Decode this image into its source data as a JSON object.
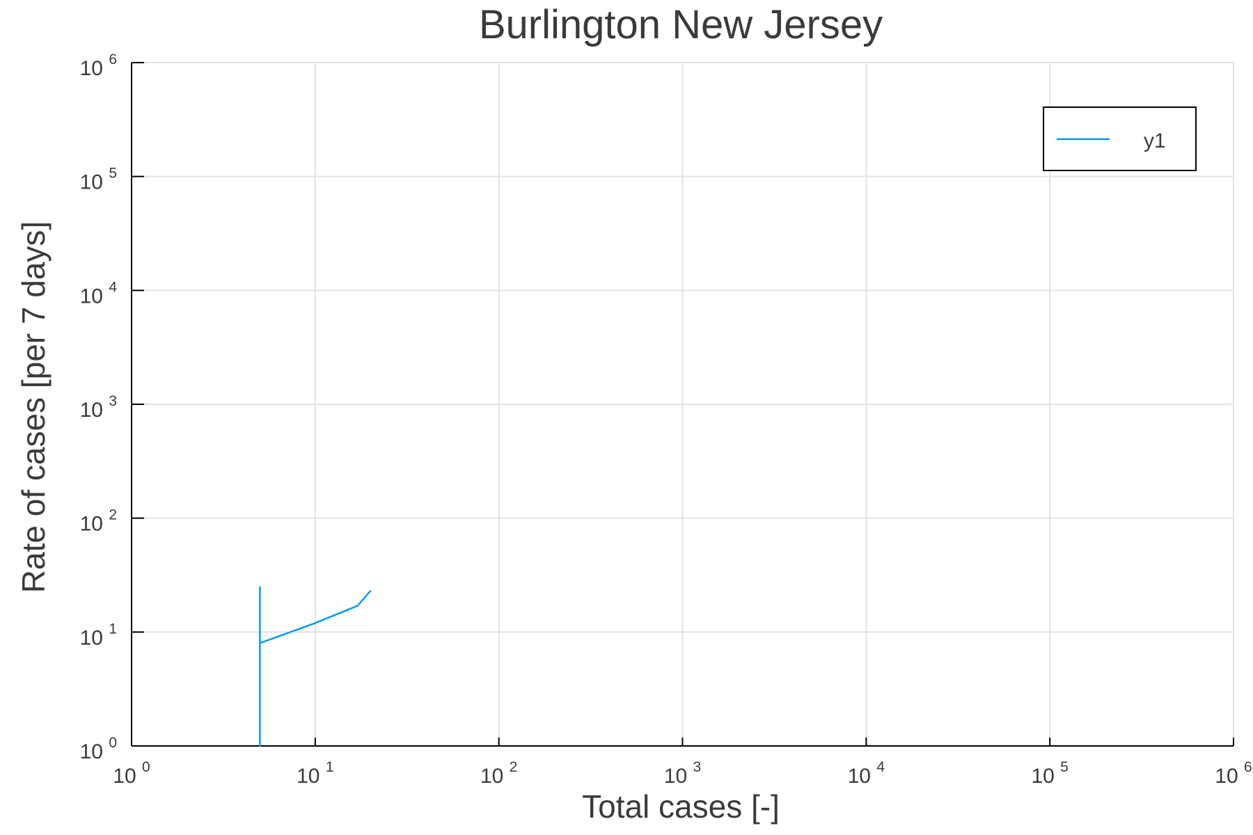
{
  "chart_data": {
    "type": "line",
    "title": "Burlington New Jersey",
    "xlabel": "Total cases [-]",
    "ylabel": "Rate of cases [per 7 days]",
    "xscale": "log",
    "yscale": "log",
    "xlim": [
      1,
      1000000
    ],
    "ylim": [
      1,
      1000000
    ],
    "x_ticks": [
      {
        "base": "10",
        "exp": "0"
      },
      {
        "base": "10",
        "exp": "1"
      },
      {
        "base": "10",
        "exp": "2"
      },
      {
        "base": "10",
        "exp": "3"
      },
      {
        "base": "10",
        "exp": "4"
      },
      {
        "base": "10",
        "exp": "5"
      },
      {
        "base": "10",
        "exp": "6"
      }
    ],
    "y_ticks": [
      {
        "base": "10",
        "exp": "0"
      },
      {
        "base": "10",
        "exp": "1"
      },
      {
        "base": "10",
        "exp": "2"
      },
      {
        "base": "10",
        "exp": "3"
      },
      {
        "base": "10",
        "exp": "4"
      },
      {
        "base": "10",
        "exp": "5"
      },
      {
        "base": "10",
        "exp": "6"
      }
    ],
    "grid": true,
    "legend_position": "top-right",
    "series": [
      {
        "name": "y1",
        "color": "#009af9",
        "x": [
          5,
          5,
          5,
          10,
          17,
          20
        ],
        "y": [
          25,
          1,
          8,
          12,
          17,
          23
        ]
      }
    ]
  }
}
